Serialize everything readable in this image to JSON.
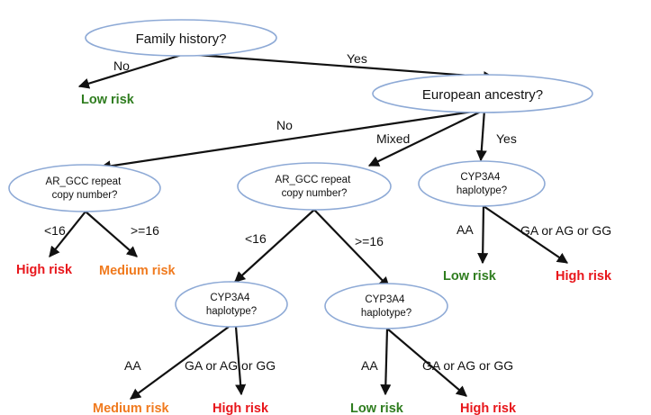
{
  "colors": {
    "low": "#2f7d1f",
    "medium": "#f07a1e",
    "high": "#e8161b",
    "node_border": "#8eaad6"
  },
  "nodes": {
    "family_history": "Family history?",
    "european_ancestry": "European ancestry?",
    "ar_gcc_left": [
      "AR_GCC repeat",
      "copy number?"
    ],
    "ar_gcc_mid": [
      "AR_GCC repeat",
      "copy number?"
    ],
    "cyp3a4_right": [
      "CYP3A4",
      "haplotype?"
    ],
    "cyp3a4_mid_left": [
      "CYP3A4",
      "haplotype?"
    ],
    "cyp3a4_mid_right": [
      "CYP3A4",
      "haplotype?"
    ]
  },
  "edges": {
    "family_no": "No",
    "family_yes": "Yes",
    "ancestry_no": "No",
    "ancestry_mixed": "Mixed",
    "ancestry_yes": "Yes",
    "left_lt16": "<16",
    "left_ge16": ">=16",
    "mid_lt16": "<16",
    "mid_ge16": ">=16",
    "right_aa": "AA",
    "right_other": "GA or AG or GG",
    "midleft_aa": "AA",
    "midleft_other": "GA or AG or GG",
    "midright_aa": "AA",
    "midright_other": "GA or AG or GG"
  },
  "leaves": {
    "family_no": "Low risk",
    "left_lt16": "High risk",
    "left_ge16": "Medium risk",
    "right_aa": "Low risk",
    "right_other": "High risk",
    "midleft_aa": "Medium risk",
    "midleft_other": "High risk",
    "midright_aa": "Low risk",
    "midright_other": "High risk"
  }
}
